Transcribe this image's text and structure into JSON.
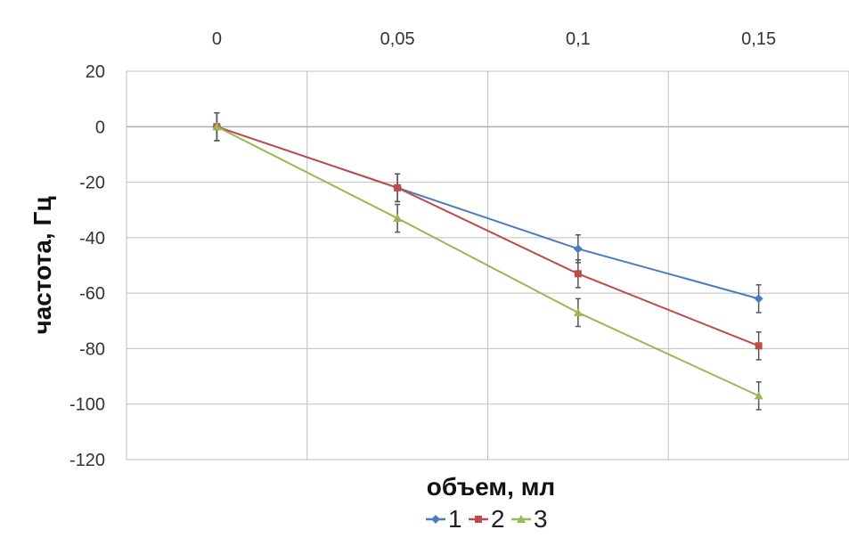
{
  "chart_data": {
    "type": "line",
    "title": "",
    "xlabel": "объем, мл",
    "ylabel": "частота, Гц",
    "x_tick_labels": [
      "0",
      "0,05",
      "0,1",
      "0,15"
    ],
    "x": [
      0,
      0.05,
      0.1,
      0.15
    ],
    "xlim": [
      -0.025,
      0.175
    ],
    "x_axis_position": "top",
    "ylim": [
      -120,
      20
    ],
    "y_ticks": [
      20,
      0,
      -20,
      -40,
      -60,
      -80,
      -100,
      -120
    ],
    "y_tick_labels": [
      "20",
      "0",
      "-20",
      "-40",
      "-60",
      "-80",
      "-100",
      "-120"
    ],
    "grid": true,
    "legend_position": "bottom",
    "error_bar": 5,
    "series": [
      {
        "name": "1",
        "color": "#4a7ebb",
        "marker": "diamond",
        "values": [
          0,
          -22,
          -44,
          -62
        ]
      },
      {
        "name": "2",
        "color": "#be4b48",
        "marker": "square",
        "values": [
          0,
          -22,
          -53,
          -79
        ]
      },
      {
        "name": "3",
        "color": "#98b954",
        "marker": "triangle",
        "values": [
          0,
          -33,
          -67,
          -97
        ]
      }
    ]
  }
}
